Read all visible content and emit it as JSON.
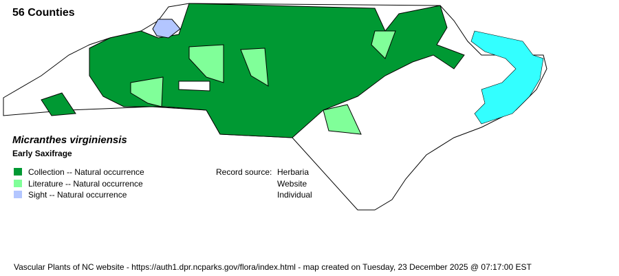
{
  "header": {
    "county_count": "56 Counties"
  },
  "species": {
    "scientific_name": "Micranthes virginiensis",
    "common_name": "Early Saxifrage"
  },
  "legend": [
    {
      "label": "Collection -- Natural occurrence",
      "color": "#009933"
    },
    {
      "label": "Literature -- Natural occurrence",
      "color": "#80ff99"
    },
    {
      "label": "Sight -- Natural occurrence",
      "color": "#b3c6ff"
    }
  ],
  "record_source": {
    "label": "Record source:",
    "sources": [
      "Herbaria",
      "Website",
      "Individual"
    ]
  },
  "map": {
    "water_color": "#33ffff",
    "absent_color": "#ffffff",
    "outline_color": "#000000"
  },
  "footer": "Vascular Plants of NC website - https://auth1.dpr.ncparks.gov/flora/index.html - map created on Tuesday, 23 December 2025 @ 07:17:00 EST"
}
